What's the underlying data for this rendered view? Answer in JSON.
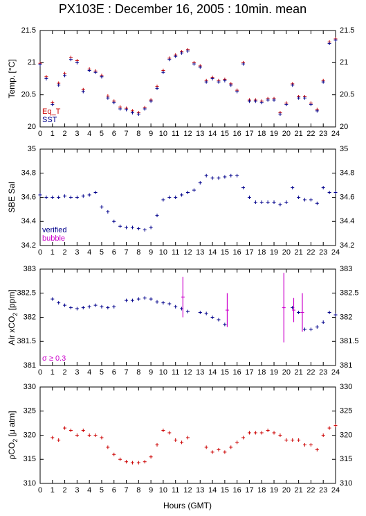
{
  "title": "PX103E : December 16, 2005 : 10min. mean",
  "xlabel": "Hours (GMT)",
  "chart_data": [
    {
      "type": "scatter",
      "ylabel": [
        "Temp. [°C]"
      ],
      "xlim": [
        0,
        24
      ],
      "xticks": [
        0,
        1,
        2,
        3,
        4,
        5,
        6,
        7,
        8,
        9,
        10,
        11,
        12,
        13,
        14,
        15,
        16,
        17,
        18,
        19,
        20,
        21,
        22,
        23,
        24
      ],
      "ylim": [
        20,
        21.5
      ],
      "yticks": [
        20,
        20.5,
        21,
        21.5
      ],
      "x": [
        0,
        0.5,
        1,
        1.5,
        2,
        2.5,
        3,
        3.5,
        4,
        4.5,
        5,
        5.5,
        6,
        6.5,
        7,
        7.5,
        8,
        8.5,
        9,
        9.5,
        10,
        10.5,
        11,
        11.5,
        12,
        12.5,
        13,
        13.5,
        14,
        14.5,
        15,
        15.5,
        16,
        16.5,
        17,
        17.5,
        18,
        18.5,
        19,
        19.5,
        20,
        20.5,
        21,
        21.5,
        22,
        22.5,
        23,
        23.5,
        24
      ],
      "series": [
        {
          "name": "Eq_T",
          "color": "#cc0000",
          "values": [
            20.99,
            20.78,
            20.38,
            20.68,
            20.83,
            21.08,
            21.03,
            20.58,
            20.9,
            20.87,
            20.8,
            20.48,
            20.4,
            20.31,
            20.29,
            20.25,
            20.22,
            20.3,
            20.42,
            20.63,
            20.88,
            21.07,
            21.12,
            21.17,
            21.2,
            21.0,
            20.95,
            20.72,
            20.77,
            20.72,
            20.74,
            20.67,
            20.57,
            21.0,
            20.42,
            20.42,
            20.4,
            20.44,
            20.44,
            20.22,
            20.37,
            20.67,
            20.47,
            20.47,
            20.37,
            20.27,
            20.72,
            21.32,
            21.37
          ]
        },
        {
          "name": "SST",
          "color": "#00008b",
          "values": [
            20.97,
            20.75,
            20.35,
            20.65,
            20.8,
            21.05,
            21.0,
            20.55,
            20.88,
            20.85,
            20.78,
            20.45,
            20.38,
            20.28,
            20.27,
            20.22,
            20.2,
            20.28,
            20.4,
            20.6,
            20.85,
            21.05,
            21.1,
            21.15,
            21.18,
            20.98,
            20.93,
            20.7,
            20.75,
            20.7,
            20.72,
            20.65,
            20.55,
            20.98,
            20.4,
            20.4,
            20.38,
            20.42,
            20.42,
            20.2,
            20.35,
            20.65,
            20.45,
            20.45,
            20.35,
            20.25,
            20.7,
            21.3,
            21.35
          ]
        }
      ]
    },
    {
      "type": "scatter",
      "ylabel": [
        "SBE Sal"
      ],
      "xlim": [
        0,
        24
      ],
      "xticks": [
        0,
        1,
        2,
        3,
        4,
        5,
        6,
        7,
        8,
        9,
        10,
        11,
        12,
        13,
        14,
        15,
        16,
        17,
        18,
        19,
        20,
        21,
        22,
        23,
        24
      ],
      "ylim": [
        34.2,
        35
      ],
      "yticks": [
        34.2,
        34.4,
        34.6,
        34.8,
        35
      ],
      "x": [
        0,
        0.5,
        1,
        1.5,
        2,
        2.5,
        3,
        3.5,
        4,
        4.5,
        5,
        5.5,
        6,
        6.5,
        7,
        7.5,
        8,
        8.5,
        9,
        9.5,
        10,
        10.5,
        11,
        11.5,
        12,
        12.5,
        13,
        13.5,
        14,
        14.5,
        15,
        15.5,
        16,
        16.5,
        17,
        17.5,
        18,
        18.5,
        19,
        19.5,
        20,
        20.5,
        21,
        21.5,
        22,
        22.5,
        23,
        23.5,
        24
      ],
      "series": [
        {
          "name": "verified",
          "color": "#00008b",
          "values": [
            34.62,
            34.6,
            34.6,
            34.6,
            34.61,
            34.6,
            34.6,
            34.61,
            34.62,
            34.64,
            34.52,
            34.48,
            34.4,
            34.36,
            34.35,
            34.35,
            34.34,
            34.33,
            34.35,
            34.45,
            34.58,
            34.6,
            34.6,
            34.62,
            34.64,
            34.66,
            34.72,
            34.78,
            34.76,
            34.76,
            34.77,
            34.78,
            34.78,
            34.68,
            34.6,
            34.56,
            34.56,
            34.56,
            34.56,
            34.54,
            34.56,
            34.68,
            34.6,
            34.58,
            34.58,
            34.55,
            34.68,
            34.64,
            34.64
          ]
        },
        {
          "name": "bubble",
          "color": "#cc00cc",
          "values": []
        }
      ]
    },
    {
      "type": "scatter",
      "ylabel": [
        "Air xCO",
        "2",
        " [ppm]"
      ],
      "xlim": [
        0,
        24
      ],
      "xticks": [
        0,
        1,
        2,
        3,
        4,
        5,
        6,
        7,
        8,
        9,
        10,
        11,
        12,
        13,
        14,
        15,
        16,
        17,
        18,
        19,
        20,
        21,
        22,
        23,
        24
      ],
      "ylim": [
        381,
        383
      ],
      "yticks": [
        381,
        381.5,
        382,
        382.5,
        383
      ],
      "x": [
        0,
        0.5,
        1,
        1.5,
        2,
        2.5,
        3,
        3.5,
        4,
        4.5,
        5,
        5.5,
        6,
        6.5,
        7,
        7.5,
        8,
        8.5,
        9,
        9.5,
        10,
        10.5,
        11,
        11.5,
        12,
        12.5,
        13,
        13.5,
        14,
        14.5,
        15,
        15.5,
        16,
        16.5,
        17,
        17.5,
        18,
        18.5,
        19,
        19.5,
        20,
        20.5,
        21,
        21.5,
        22,
        22.5,
        23,
        23.5,
        24
      ],
      "series": [
        {
          "color": "#00008b",
          "values": [
            null,
            null,
            382.38,
            382.3,
            382.25,
            382.2,
            382.18,
            382.2,
            382.22,
            382.25,
            382.22,
            382.2,
            382.22,
            null,
            382.35,
            382.35,
            382.38,
            382.4,
            382.38,
            382.32,
            382.3,
            382.28,
            382.22,
            382.18,
            382.12,
            null,
            382.1,
            382.08,
            382.0,
            381.95,
            381.85,
            null,
            null,
            null,
            null,
            null,
            null,
            null,
            null,
            null,
            null,
            382.2,
            382.1,
            381.75,
            381.75,
            381.8,
            381.9,
            382.1,
            382.05
          ]
        },
        {
          "name": "σ ≥ 0.3",
          "color": "#cc00cc",
          "x": [
            11.6,
            15.2,
            19.8,
            20.6,
            21.3
          ],
          "values": [
            382.42,
            382.15,
            382.2,
            382.15,
            382.1
          ],
          "errors": [
            0.42,
            0.35,
            0.72,
            0.25,
            0.4
          ]
        }
      ]
    },
    {
      "type": "scatter",
      "ylabel": [
        "ρCO",
        "2",
        " [μ atm]"
      ],
      "xlim": [
        0,
        24
      ],
      "xticks": [
        0,
        1,
        2,
        3,
        4,
        5,
        6,
        7,
        8,
        9,
        10,
        11,
        12,
        13,
        14,
        15,
        16,
        17,
        18,
        19,
        20,
        21,
        22,
        23,
        24
      ],
      "ylim": [
        310,
        330
      ],
      "yticks": [
        310,
        315,
        320,
        325,
        330
      ],
      "x": [
        0,
        0.5,
        1,
        1.5,
        2,
        2.5,
        3,
        3.5,
        4,
        4.5,
        5,
        5.5,
        6,
        6.5,
        7,
        7.5,
        8,
        8.5,
        9,
        9.5,
        10,
        10.5,
        11,
        11.5,
        12,
        12.5,
        13,
        13.5,
        14,
        14.5,
        15,
        15.5,
        16,
        16.5,
        17,
        17.5,
        18,
        18.5,
        19,
        19.5,
        20,
        20.5,
        21,
        21.5,
        22,
        22.5,
        23,
        23.5,
        24
      ],
      "series": [
        {
          "color": "#cc0000",
          "values": [
            null,
            null,
            319.5,
            319,
            321.5,
            321,
            320,
            321,
            320,
            320,
            319.5,
            317.5,
            316,
            315,
            314.5,
            314.3,
            314.3,
            314.5,
            315.5,
            318,
            321,
            320.5,
            319,
            318.5,
            319.5,
            null,
            null,
            317.5,
            316.5,
            317,
            316.5,
            317.5,
            318.5,
            319.5,
            320.5,
            320.5,
            320.5,
            321,
            320.5,
            320,
            319,
            319,
            319,
            318,
            318,
            317,
            320,
            321.5,
            322
          ]
        }
      ]
    }
  ]
}
